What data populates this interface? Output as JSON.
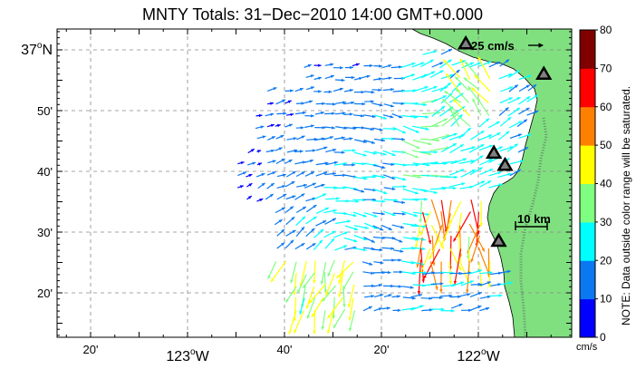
{
  "title": "MNTY Totals: 31−Dec−2010 14:00 GMT+0.000",
  "lat_labels": [
    {
      "text": "37",
      "sup": "o",
      "suffix": "N",
      "lat_min": 0
    },
    {
      "text": "50'",
      "lat_min": -10
    },
    {
      "text": "40'",
      "lat_min": -20
    },
    {
      "text": "30'",
      "lat_min": -30
    },
    {
      "text": "20'",
      "lat_min": -40
    }
  ],
  "lon_labels": [
    {
      "text": "20'",
      "lon_min": -200
    },
    {
      "text": "123",
      "sup": "o",
      "suffix": "W",
      "lon_min": -180
    },
    {
      "text": "40'",
      "lon_min": -160
    },
    {
      "text": "20'",
      "lon_min": -140
    },
    {
      "text": "122",
      "sup": "o",
      "suffix": "W",
      "lon_min": -120
    }
  ],
  "scale_vector_label": "25 cm/s",
  "scale_bar_label": "10 km",
  "colorbar": {
    "ticks": [
      "0",
      "10",
      "20",
      "30",
      "40",
      "50",
      "60",
      "70",
      "80"
    ],
    "unit": "cm/s",
    "note": "NOTE: Data outside color range will be saturated.",
    "colors": [
      "#0000ff",
      "#0a78f0",
      "#00ffff",
      "#7fff7f",
      "#ffff00",
      "#ff8000",
      "#ff0000",
      "#800000"
    ]
  },
  "sites": [
    {
      "lon_min": -122.6,
      "lat_min": 1.0
    },
    {
      "lon_min": -106.5,
      "lat_min": -4.0
    },
    {
      "lon_min": -116.8,
      "lat_min": -17.0
    },
    {
      "lon_min": -114.5,
      "lat_min": -19.0
    },
    {
      "lon_min": -115.8,
      "lat_min": -31.5
    }
  ]
}
